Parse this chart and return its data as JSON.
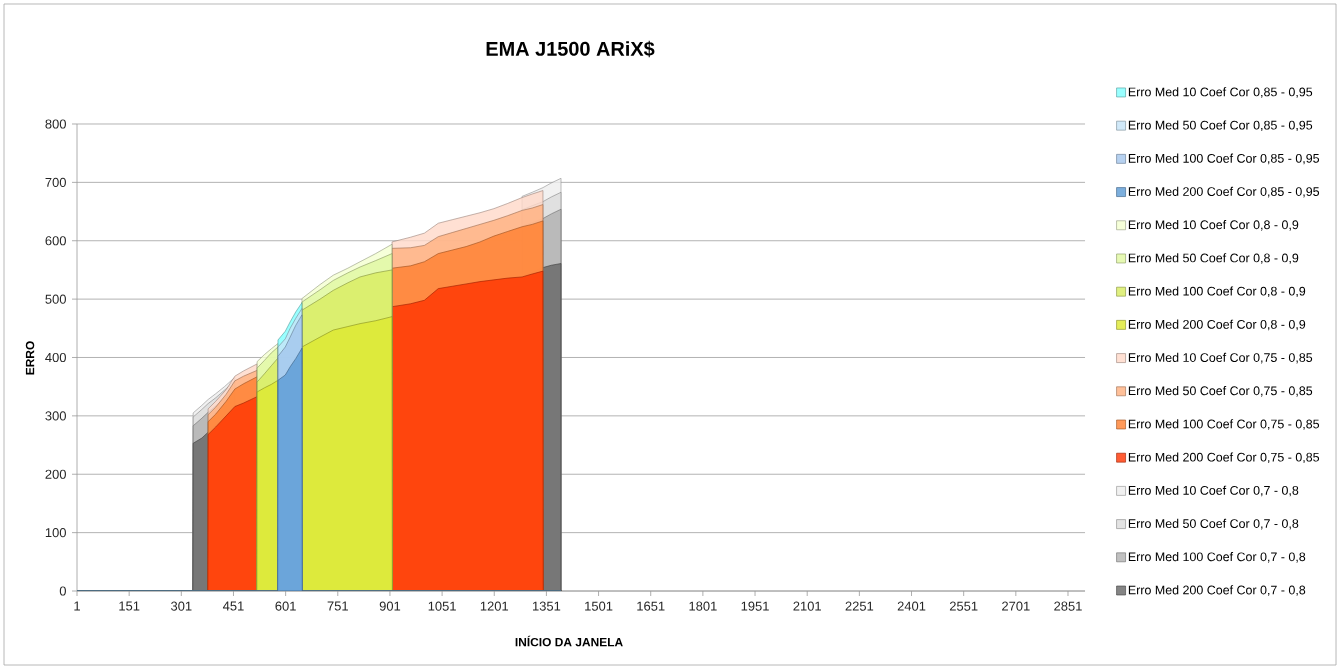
{
  "chart_data": {
    "type": "area",
    "title": "EMA J1500 ARiX$",
    "xlabel": "INÍCIO DA JANELA",
    "ylabel": "ERRO",
    "xlim": [
      1,
      2900
    ],
    "ylim": [
      0,
      800
    ],
    "xticks": [
      1,
      151,
      301,
      451,
      601,
      751,
      901,
      1051,
      1201,
      1351,
      1501,
      1651,
      1801,
      1951,
      2101,
      2251,
      2401,
      2551,
      2701,
      2851
    ],
    "yticks": [
      0,
      100,
      200,
      300,
      400,
      500,
      600,
      700,
      800
    ],
    "grid": "y",
    "legend": "right",
    "series": [
      {
        "name": "Erro Med 10 Coef Cor 0,85 - 0,95",
        "color": "#80ffff",
        "x": [
          1,
          578,
          579,
          600,
          614,
          630,
          648,
          649,
          1393
        ],
        "values": [
          0,
          0,
          430,
          445,
          461,
          478,
          494,
          0,
          0
        ]
      },
      {
        "name": "Erro Med 50 Coef Cor 0,85 - 0,95",
        "color": "#c6e4f7",
        "x": [
          1,
          578,
          579,
          600,
          614,
          630,
          648,
          649,
          1393
        ],
        "values": [
          0,
          0,
          418,
          432,
          450,
          467,
          484,
          0,
          0
        ]
      },
      {
        "name": "Erro Med 100 Coef Cor 0,85 - 0,95",
        "color": "#a4c6ec",
        "x": [
          1,
          578,
          579,
          600,
          614,
          630,
          648,
          649,
          1393
        ],
        "values": [
          0,
          0,
          402,
          418,
          435,
          455,
          473,
          0,
          0
        ]
      },
      {
        "name": "Erro Med 200 Coef Cor 0,85 - 0,95",
        "color": "#5b9bd5",
        "x": [
          1,
          578,
          579,
          600,
          614,
          630,
          648,
          649,
          1393
        ],
        "values": [
          0,
          0,
          361,
          370,
          384,
          398,
          416,
          0,
          0
        ]
      },
      {
        "name": "Erro Med 10 Coef Cor 0,8 - 0,9",
        "color": "#f4ffd0",
        "x": [
          1,
          518,
          519,
          540,
          560,
          579,
          580,
          647,
          648,
          700,
          738,
          780,
          815,
          860,
          907,
          908,
          1393
        ],
        "values": [
          0,
          0,
          393,
          405,
          415,
          424,
          0,
          0,
          501,
          525,
          541,
          553,
          564,
          578,
          594,
          0,
          0
        ]
      },
      {
        "name": "Erro Med 50 Coef Cor 0,8 - 0,9",
        "color": "#e0f8a0",
        "x": [
          1,
          518,
          519,
          540,
          560,
          579,
          580,
          647,
          648,
          700,
          738,
          780,
          815,
          860,
          907,
          908,
          1393
        ],
        "values": [
          0,
          0,
          382,
          395,
          408,
          418,
          0,
          0,
          495,
          516,
          532,
          545,
          555,
          566,
          578,
          0,
          0
        ]
      },
      {
        "name": "Erro Med 100 Coef Cor 0,8 - 0,9",
        "color": "#d8ec60",
        "x": [
          1,
          518,
          519,
          540,
          560,
          579,
          580,
          647,
          648,
          700,
          738,
          780,
          815,
          860,
          907,
          908,
          1393
        ],
        "values": [
          0,
          0,
          358,
          372,
          386,
          399,
          0,
          0,
          481,
          500,
          515,
          528,
          538,
          545,
          550,
          0,
          0
        ]
      },
      {
        "name": "Erro Med 200 Coef Cor 0,8 - 0,9",
        "color": "#dde830",
        "x": [
          1,
          518,
          519,
          540,
          560,
          579,
          580,
          647,
          648,
          700,
          738,
          780,
          815,
          860,
          907,
          908,
          1393
        ],
        "values": [
          0,
          0,
          341,
          348,
          354,
          361,
          0,
          0,
          418,
          435,
          447,
          453,
          458,
          463,
          470,
          0,
          0
        ]
      },
      {
        "name": "Erro Med 10 Coef Cor 0,75 - 0,85",
        "color": "#ffd8c8",
        "x": [
          1,
          377,
          378,
          400,
          430,
          455,
          480,
          519,
          520,
          906,
          907,
          960,
          1000,
          1040,
          1080,
          1120,
          1160,
          1200,
          1240,
          1281,
          1310,
          1341,
          1342,
          1393
        ],
        "values": [
          0,
          0,
          312,
          325,
          345,
          368,
          377,
          389,
          0,
          0,
          598,
          606,
          613,
          630,
          636,
          642,
          648,
          655,
          664,
          674,
          680,
          686,
          0,
          0
        ]
      },
      {
        "name": "Erro Med 50 Coef Cor 0,75 - 0,85",
        "color": "#ffb080",
        "x": [
          1,
          377,
          378,
          400,
          430,
          455,
          480,
          519,
          520,
          906,
          907,
          960,
          1000,
          1040,
          1080,
          1120,
          1160,
          1200,
          1240,
          1281,
          1310,
          1341,
          1342,
          1393
        ],
        "values": [
          0,
          0,
          302,
          315,
          337,
          360,
          368,
          378,
          0,
          0,
          587,
          588,
          592,
          607,
          614,
          621,
          628,
          635,
          643,
          652,
          656,
          662,
          0,
          0
        ]
      },
      {
        "name": "Erro Med 100 Coef Cor 0,75 - 0,85",
        "color": "#ff8030",
        "x": [
          1,
          377,
          378,
          400,
          430,
          455,
          480,
          519,
          520,
          906,
          907,
          960,
          1000,
          1040,
          1080,
          1120,
          1160,
          1200,
          1240,
          1281,
          1310,
          1341,
          1342,
          1393
        ],
        "values": [
          0,
          0,
          290,
          303,
          325,
          346,
          355,
          367,
          0,
          0,
          553,
          557,
          564,
          578,
          584,
          590,
          598,
          608,
          616,
          624,
          628,
          634,
          0,
          0
        ]
      },
      {
        "name": "Erro Med 200 Coef Cor 0,75 - 0,85",
        "color": "#ff3300",
        "x": [
          1,
          377,
          378,
          400,
          430,
          455,
          480,
          519,
          520,
          906,
          907,
          960,
          1000,
          1040,
          1080,
          1120,
          1160,
          1200,
          1240,
          1281,
          1310,
          1341,
          1342,
          1393
        ],
        "values": [
          0,
          0,
          268,
          281,
          300,
          316,
          322,
          333,
          0,
          0,
          487,
          492,
          498,
          518,
          522,
          526,
          530,
          533,
          536,
          538,
          543,
          548,
          0,
          0
        ]
      },
      {
        "name": "Erro Med 10 Coef Cor 0,7 - 0,8",
        "color": "#eeeeee",
        "x": [
          1,
          334,
          335,
          360,
          378,
          400,
          425,
          455,
          456,
          1280,
          1281,
          1310,
          1341,
          1365,
          1393
        ],
        "values": [
          0,
          0,
          305,
          318,
          328,
          338,
          350,
          366,
          0,
          0,
          676,
          683,
          691,
          699,
          707
        ]
      },
      {
        "name": "Erro Med 50 Coef Cor 0,7 - 0,8",
        "color": "#dcdcdc",
        "x": [
          1,
          334,
          335,
          360,
          378,
          400,
          425,
          455,
          456,
          1280,
          1281,
          1310,
          1341,
          1365,
          1393
        ],
        "values": [
          0,
          0,
          298,
          311,
          321,
          331,
          344,
          360,
          0,
          0,
          653,
          660,
          667,
          675,
          683
        ]
      },
      {
        "name": "Erro Med 100 Coef Cor 0,7 - 0,8",
        "color": "#b0b0b0",
        "x": [
          1,
          334,
          335,
          360,
          378,
          400,
          425,
          455,
          456,
          1280,
          1281,
          1310,
          1341,
          1365,
          1393
        ],
        "values": [
          0,
          0,
          283,
          296,
          306,
          317,
          330,
          344,
          0,
          0,
          625,
          631,
          638,
          646,
          654
        ]
      },
      {
        "name": "Erro Med 200 Coef Cor 0,7 - 0,8",
        "color": "#666666",
        "x": [
          1,
          334,
          335,
          360,
          378,
          400,
          425,
          455,
          456,
          1280,
          1281,
          1310,
          1341,
          1365,
          1393
        ],
        "values": [
          0,
          0,
          253,
          262,
          272,
          285,
          298,
          316,
          0,
          0,
          539,
          546,
          554,
          558,
          561
        ]
      }
    ]
  }
}
